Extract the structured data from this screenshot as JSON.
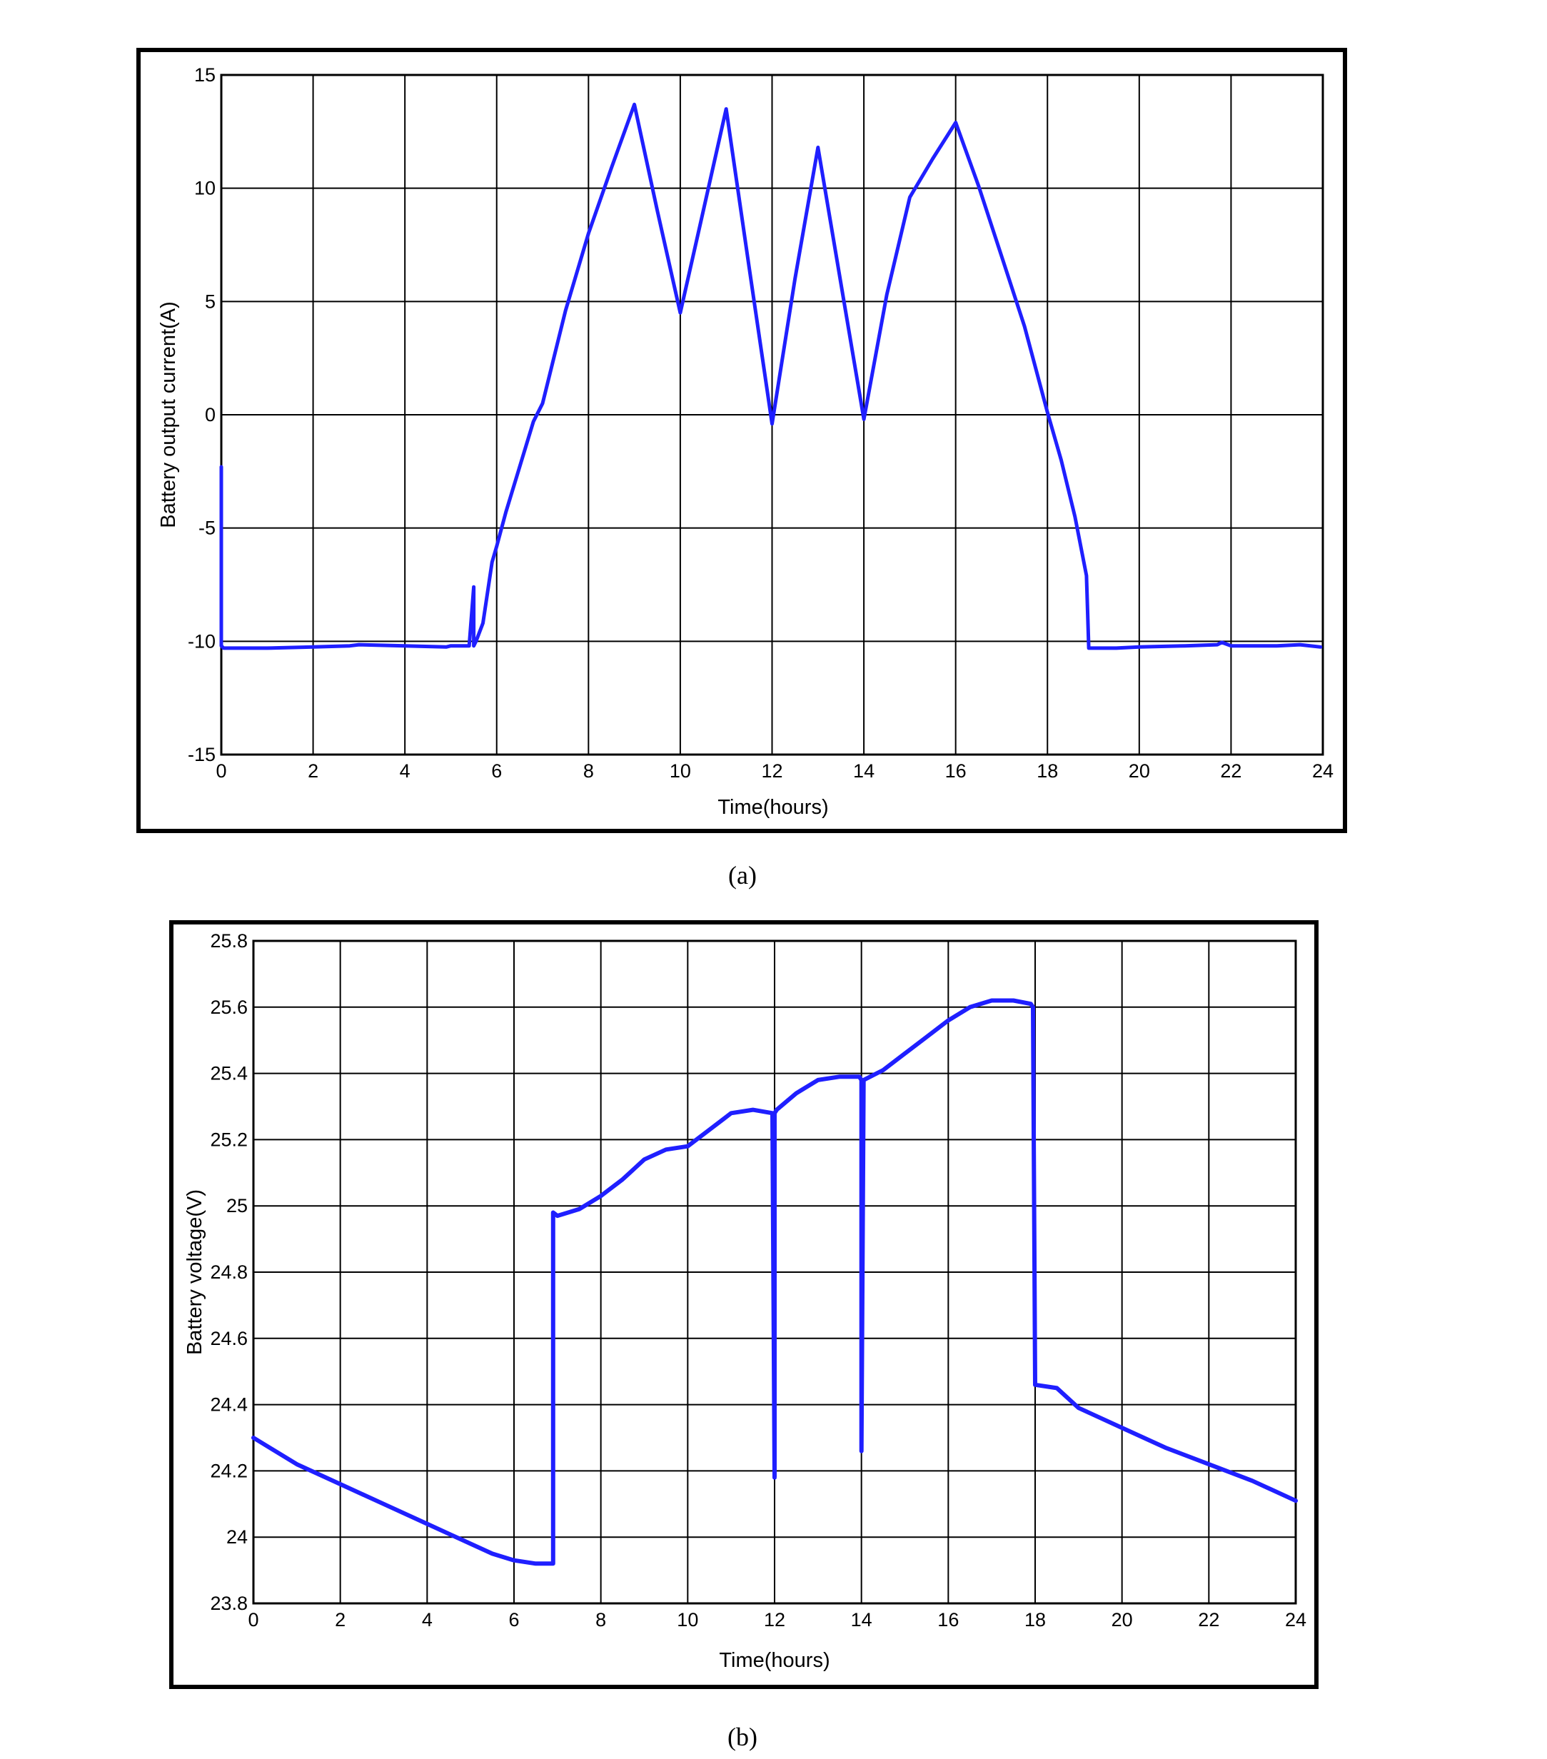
{
  "series_color": "#1f1fff",
  "chart_data": [
    {
      "type": "line",
      "caption": "(a)",
      "xlabel": "Time(hours)",
      "ylabel": "Battery output current(A)",
      "xlim": [
        0,
        24
      ],
      "ylim": [
        -15,
        15
      ],
      "xticks": [
        0,
        2,
        4,
        6,
        8,
        10,
        12,
        14,
        16,
        18,
        20,
        22,
        24
      ],
      "yticks": [
        -15,
        -10,
        -5,
        0,
        5,
        10,
        15
      ],
      "xtick_labels": [
        "0",
        "2",
        "4",
        "6",
        "8",
        "10",
        "12",
        "14",
        "16",
        "18",
        "20",
        "22",
        "24"
      ],
      "ytick_labels": [
        "-15",
        "-10",
        "-5",
        "0",
        "5",
        "10",
        "15"
      ],
      "grid": true,
      "series": [
        {
          "x": [
            0,
            0,
            0.05,
            1,
            2,
            2.8,
            3,
            4,
            4.9,
            5,
            5.4,
            5.5,
            5.5,
            5.55,
            5.7,
            5.9,
            6,
            6.2,
            6.5,
            6.8,
            7,
            7.5,
            8,
            8.5,
            9,
            9.5,
            10,
            10.5,
            11,
            11.5,
            12,
            12.5,
            13,
            13.5,
            14,
            14.5,
            15,
            15.5,
            16,
            16.5,
            17,
            17.5,
            18,
            18.3,
            18.6,
            18.85,
            18.9,
            18.95,
            19.5,
            20,
            21,
            21.7,
            21.8,
            22,
            23,
            23.5,
            23.95
          ],
          "y": [
            -2.3,
            -10.2,
            -10.3,
            -10.3,
            -10.25,
            -10.2,
            -10.15,
            -10.2,
            -10.25,
            -10.2,
            -10.2,
            -7.6,
            -10.2,
            -10.0,
            -9.2,
            -6.5,
            -5.8,
            -4.3,
            -2.3,
            -0.3,
            0.5,
            4.6,
            8.0,
            10.9,
            13.7,
            9.0,
            4.5,
            9.0,
            13.5,
            6.5,
            -0.4,
            6.0,
            11.8,
            5.8,
            -0.2,
            5.3,
            9.6,
            11.3,
            12.9,
            10.1,
            7.0,
            3.9,
            0.1,
            -2.0,
            -4.5,
            -7.1,
            -10.3,
            -10.3,
            -10.3,
            -10.25,
            -10.2,
            -10.15,
            -10.05,
            -10.2,
            -10.2,
            -10.15,
            -10.25
          ]
        }
      ]
    },
    {
      "type": "line",
      "caption": "(b)",
      "xlabel": "Time(hours)",
      "ylabel": "Battery voltage(V)",
      "xlim": [
        0,
        24
      ],
      "ylim": [
        23.8,
        25.8
      ],
      "xticks": [
        0,
        2,
        4,
        6,
        8,
        10,
        12,
        14,
        16,
        18,
        20,
        22,
        24
      ],
      "yticks": [
        23.8,
        24.0,
        24.2,
        24.4,
        24.6,
        24.8,
        25.0,
        25.2,
        25.4,
        25.6,
        25.8
      ],
      "xtick_labels": [
        "0",
        "2",
        "4",
        "6",
        "8",
        "10",
        "12",
        "14",
        "16",
        "18",
        "20",
        "22",
        "24"
      ],
      "ytick_labels": [
        "23.8",
        "24",
        "24.2",
        "24.4",
        "24.6",
        "24.8",
        "25",
        "25.2",
        "25.4",
        "25.6",
        "25.8"
      ],
      "grid": true,
      "series": [
        {
          "x": [
            0,
            1,
            2,
            3,
            4,
            5,
            5.5,
            6,
            6.5,
            6.9,
            6.9,
            7.0,
            7.5,
            8,
            8.5,
            9,
            9.5,
            10,
            10.5,
            11,
            11.5,
            11.95,
            12.0,
            12.0,
            12.05,
            12.5,
            13,
            13.5,
            13.95,
            14.0,
            14.0,
            14.05,
            14.5,
            15,
            15.5,
            16,
            16.5,
            17,
            17.5,
            17.9,
            17.95,
            18.0,
            18.5,
            19,
            20,
            21,
            22,
            23,
            24
          ],
          "y": [
            24.3,
            24.22,
            24.16,
            24.1,
            24.04,
            23.98,
            23.95,
            23.93,
            23.92,
            23.92,
            24.98,
            24.97,
            24.99,
            25.03,
            25.08,
            25.14,
            25.17,
            25.18,
            25.23,
            25.28,
            25.29,
            25.28,
            24.18,
            25.28,
            25.29,
            25.34,
            25.38,
            25.39,
            25.39,
            25.38,
            24.26,
            25.38,
            25.41,
            25.46,
            25.51,
            25.56,
            25.6,
            25.62,
            25.62,
            25.61,
            25.6,
            24.46,
            24.45,
            24.39,
            24.33,
            24.27,
            24.22,
            24.17,
            24.11
          ]
        }
      ]
    }
  ]
}
